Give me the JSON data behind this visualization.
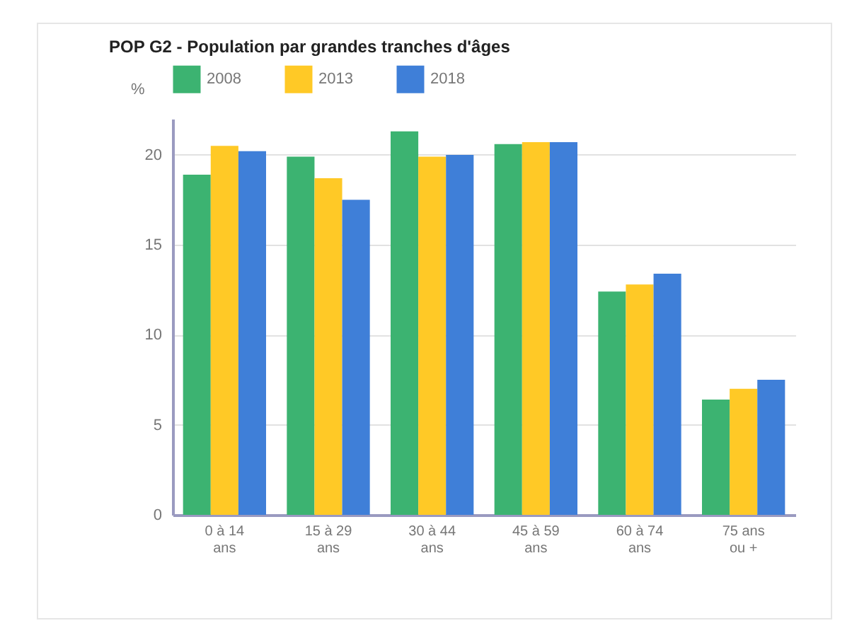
{
  "chart_data": {
    "type": "bar",
    "title": "POP G2 - Population par grandes tranches d'âges",
    "ylabel": "%",
    "categories": [
      "0 à 14 ans",
      "15 à 29 ans",
      "30 à 44 ans",
      "45 à 59 ans",
      "60 à 74 ans",
      "75 ans ou +"
    ],
    "series": [
      {
        "name": "2008",
        "color": "#3cb371",
        "values": [
          18.9,
          19.9,
          21.3,
          20.6,
          12.4,
          6.4
        ]
      },
      {
        "name": "2013",
        "color": "#ffc926",
        "values": [
          20.5,
          18.7,
          19.9,
          20.7,
          12.8,
          7.0
        ]
      },
      {
        "name": "2018",
        "color": "#3f7fd8",
        "values": [
          20.2,
          17.5,
          20.0,
          20.7,
          13.4,
          7.5
        ]
      }
    ],
    "ylim": [
      0,
      22
    ],
    "yticks": [
      0,
      5,
      10,
      15,
      20
    ],
    "grid": "y",
    "legend": "top"
  }
}
